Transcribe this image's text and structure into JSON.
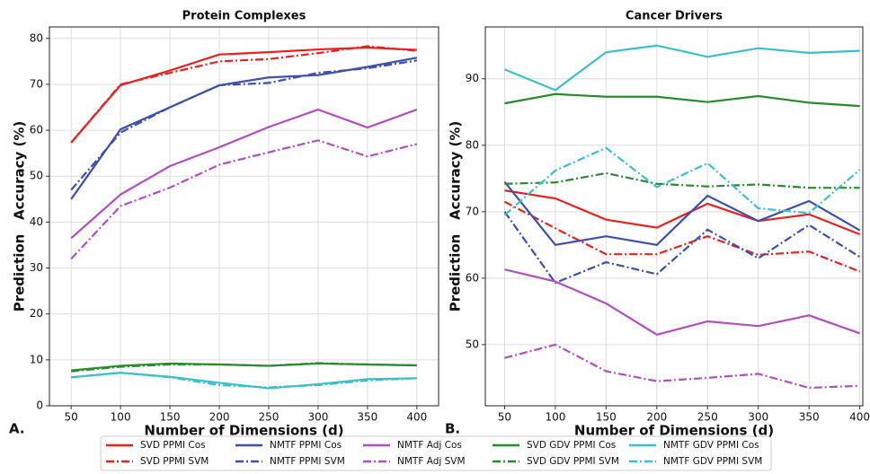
{
  "chart_data": [
    {
      "type": "line",
      "title": "Protein Complexes",
      "panel_label": "A.",
      "x_label": "Number of Dimensions (d)",
      "y_label": "Prediction   Accuracy (%)",
      "x": [
        50,
        100,
        150,
        200,
        250,
        300,
        350,
        400
      ],
      "xlim": [
        28,
        422
      ],
      "ylim": [
        0,
        82.5
      ],
      "xticks": [
        50,
        100,
        150,
        200,
        250,
        300,
        350,
        400
      ],
      "yticks": [
        0,
        10,
        20,
        30,
        40,
        50,
        60,
        70,
        80
      ],
      "grid": true,
      "series": [
        {
          "name": "SVD PPMI Cos",
          "color": "#e8221f",
          "style": "solid",
          "values": [
            57.3,
            69.8,
            73,
            76.5,
            77,
            77.6,
            78,
            77.5
          ]
        },
        {
          "name": "SVD PPMI SVM",
          "color": "#e8221f",
          "style": "dashdot",
          "values": [
            57.3,
            70,
            72.5,
            75,
            75.5,
            76.8,
            78.3,
            77.3
          ]
        },
        {
          "name": "NMTF PPMI Cos",
          "color": "#3d4fb0",
          "style": "solid",
          "values": [
            45,
            60.2,
            65,
            69.8,
            71.5,
            72,
            73.8,
            75.8
          ]
        },
        {
          "name": "NMTF PPMI SVM",
          "color": "#3d4fb0",
          "style": "dashdot",
          "values": [
            47,
            59.5,
            65,
            69.8,
            70.3,
            72.5,
            73.5,
            75.2
          ]
        },
        {
          "name": "NMTF Adj Cos",
          "color": "#b04fbf",
          "style": "solid",
          "values": [
            36.5,
            46,
            52.2,
            56.3,
            60.7,
            64.5,
            60.6,
            64.5
          ]
        },
        {
          "name": "NMTF Adj SVM",
          "color": "#b04fbf",
          "style": "dashdot",
          "values": [
            32,
            43.5,
            47.5,
            52.5,
            55.2,
            57.8,
            54.3,
            57
          ]
        },
        {
          "name": "SVD GDV PPMI Cos",
          "color": "#2a8a2e",
          "style": "solid",
          "values": [
            7.7,
            8.7,
            9.2,
            9.0,
            8.7,
            9.2,
            9.0,
            8.8
          ]
        },
        {
          "name": "SVD GDV PPMI SVM",
          "color": "#2a8a2e",
          "style": "dashdot",
          "values": [
            7.5,
            8.5,
            9.0,
            9.0,
            8.7,
            9.3,
            9.0,
            8.8
          ]
        },
        {
          "name": "NMTF GDV PPMI Cos",
          "color": "#3bbfc8",
          "style": "solid",
          "values": [
            6.2,
            7.2,
            6.3,
            5.0,
            3.8,
            4.7,
            5.8,
            6.0
          ]
        },
        {
          "name": "NMTF GDV PPMI SVM",
          "color": "#3bbfc8",
          "style": "dashdot",
          "values": [
            6.2,
            7.2,
            6.2,
            4.5,
            4.0,
            4.5,
            5.5,
            6.0
          ]
        }
      ]
    },
    {
      "type": "line",
      "title": "Cancer Drivers",
      "panel_label": "B.",
      "x_label": "Number of Dimensions (d)",
      "y_label": "Prediction   Accuracy (%)",
      "x": [
        50,
        100,
        150,
        200,
        250,
        300,
        350,
        400
      ],
      "xlim": [
        31,
        403
      ],
      "ylim": [
        40.8,
        97.8
      ],
      "xticks": [
        50,
        100,
        150,
        200,
        250,
        300,
        350,
        400
      ],
      "yticks": [
        50,
        60,
        70,
        80,
        90
      ],
      "grid": true,
      "series": [
        {
          "color": "#e8221f",
          "style": "solid",
          "values": [
            73.2,
            72,
            68.8,
            67.6,
            71.2,
            68.6,
            69.6,
            66.6
          ]
        },
        {
          "color": "#e8221f",
          "style": "dashdot",
          "values": [
            71.5,
            67.5,
            63.6,
            63.6,
            66.3,
            63.5,
            64,
            61
          ]
        },
        {
          "color": "#3d4fb0",
          "style": "solid",
          "values": [
            74.5,
            65,
            66.3,
            65,
            72.4,
            68.6,
            71.6,
            67.2
          ]
        },
        {
          "color": "#3d4fb0",
          "style": "dashdot",
          "values": [
            70,
            59.3,
            62.4,
            60.6,
            67.3,
            63,
            68,
            63.2
          ]
        },
        {
          "color": "#b04fbf",
          "style": "solid",
          "values": [
            61.3,
            59.5,
            56.2,
            51.5,
            53.5,
            52.8,
            54.4,
            51.7
          ]
        },
        {
          "color": "#b04fbf",
          "style": "dashdot",
          "values": [
            48,
            50,
            46,
            44.5,
            45,
            45.6,
            43.5,
            43.8
          ]
        },
        {
          "color": "#2a8a2e",
          "style": "solid",
          "values": [
            86.3,
            87.7,
            87.3,
            87.3,
            86.5,
            87.4,
            86.4,
            85.9
          ]
        },
        {
          "color": "#2a8a2e",
          "style": "dashdot",
          "values": [
            74.2,
            74.4,
            75.8,
            74.2,
            73.8,
            74.1,
            73.6,
            73.6
          ]
        },
        {
          "color": "#3bbfc8",
          "style": "solid",
          "values": [
            91.4,
            88.3,
            94,
            95,
            93.3,
            94.6,
            93.9,
            94.2
          ]
        },
        {
          "color": "#3bbfc8",
          "style": "dashdot",
          "values": [
            69.5,
            76.2,
            79.6,
            73.7,
            77.3,
            70.5,
            69.8,
            76.3
          ]
        }
      ]
    }
  ]
}
